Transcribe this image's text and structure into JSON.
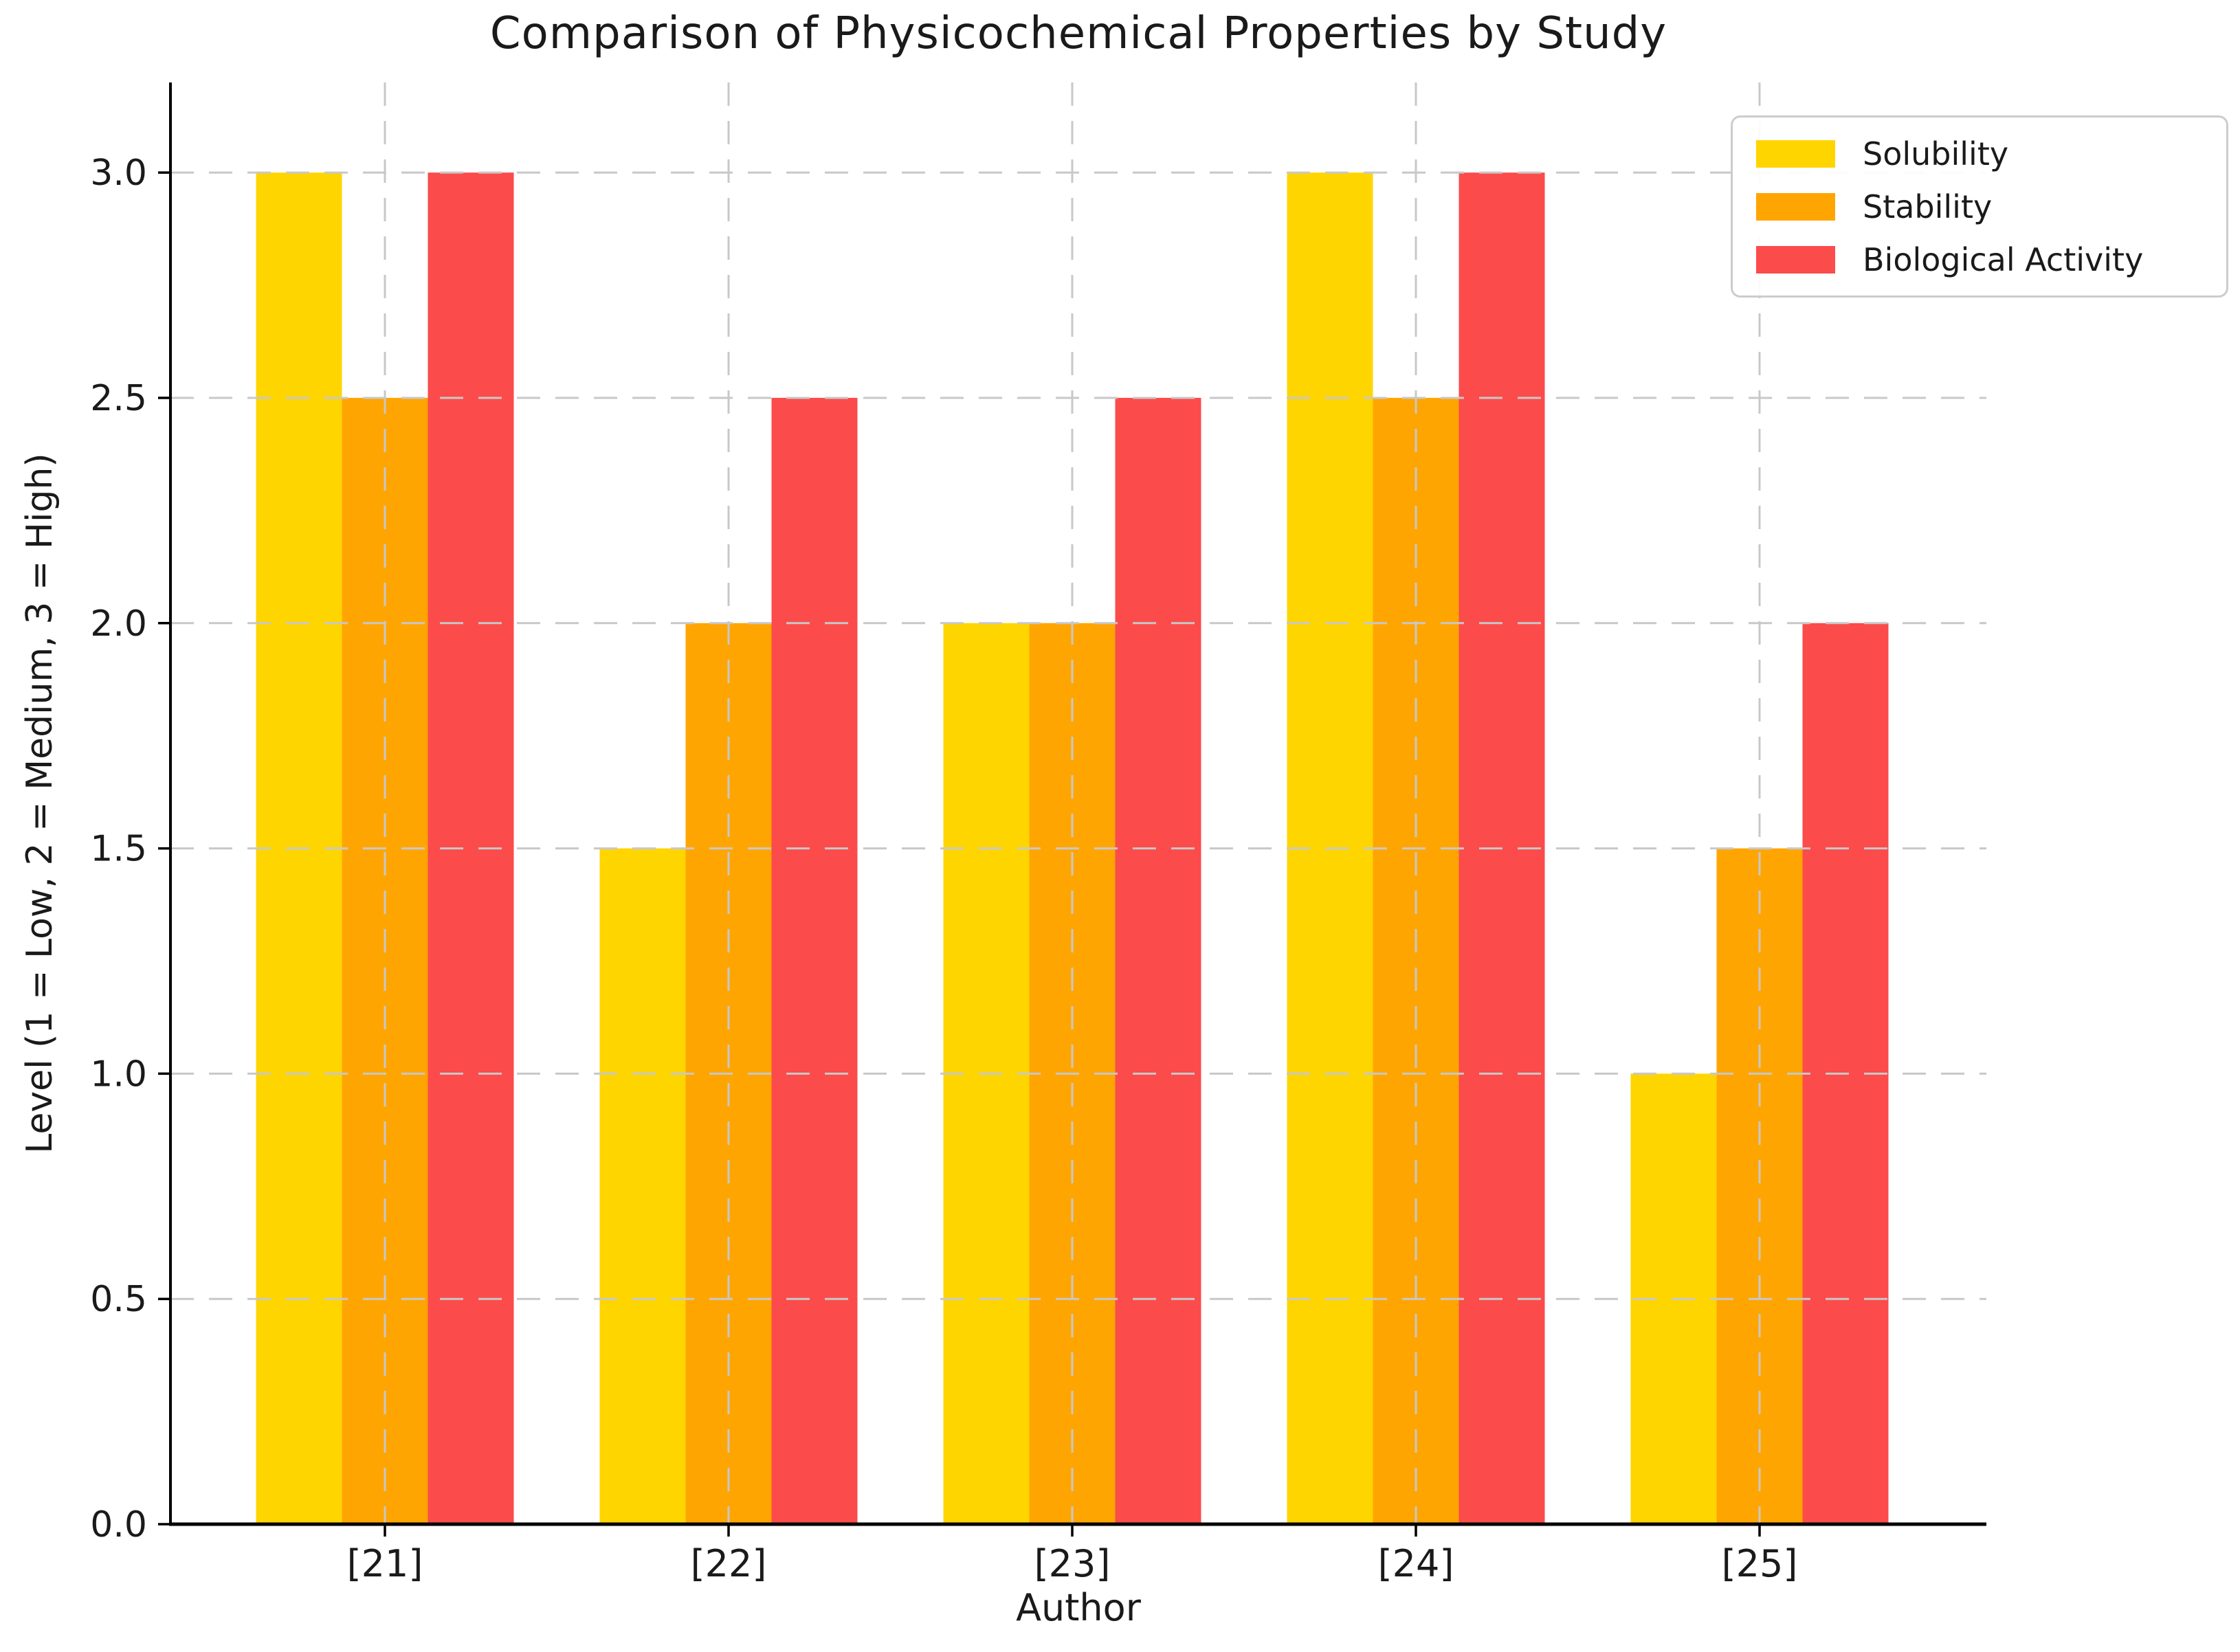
{
  "chart_data": {
    "type": "bar",
    "title": "Comparison of Physicochemical Properties by Study",
    "xlabel": "Author",
    "ylabel": "Level (1 = Low, 2 = Medium, 3 = High)",
    "categories": [
      "[21]",
      "[22]",
      "[23]",
      "[24]",
      "[25]"
    ],
    "series": [
      {
        "name": "Solubility",
        "color": "#FFD500",
        "values": [
          3.0,
          1.5,
          2.0,
          3.0,
          1.0
        ]
      },
      {
        "name": "Stability",
        "color": "#FFA502",
        "values": [
          2.5,
          2.0,
          2.0,
          2.5,
          1.5
        ]
      },
      {
        "name": "Biological Activity",
        "color": "#FB4B4B",
        "values": [
          3.0,
          2.5,
          2.5,
          3.0,
          2.0
        ]
      }
    ],
    "ylim": [
      0,
      3.2
    ],
    "yticks": [
      0.0,
      0.5,
      1.0,
      1.5,
      2.0,
      2.5,
      3.0
    ],
    "ytick_labels": [
      "0.0",
      "0.5",
      "1.0",
      "1.5",
      "2.0",
      "2.5",
      "3.0"
    ],
    "grid": true,
    "grid_style": "dashed",
    "grid_color": "#c8c8c8",
    "axis_color": "#000000",
    "legend_position": "upper right"
  }
}
